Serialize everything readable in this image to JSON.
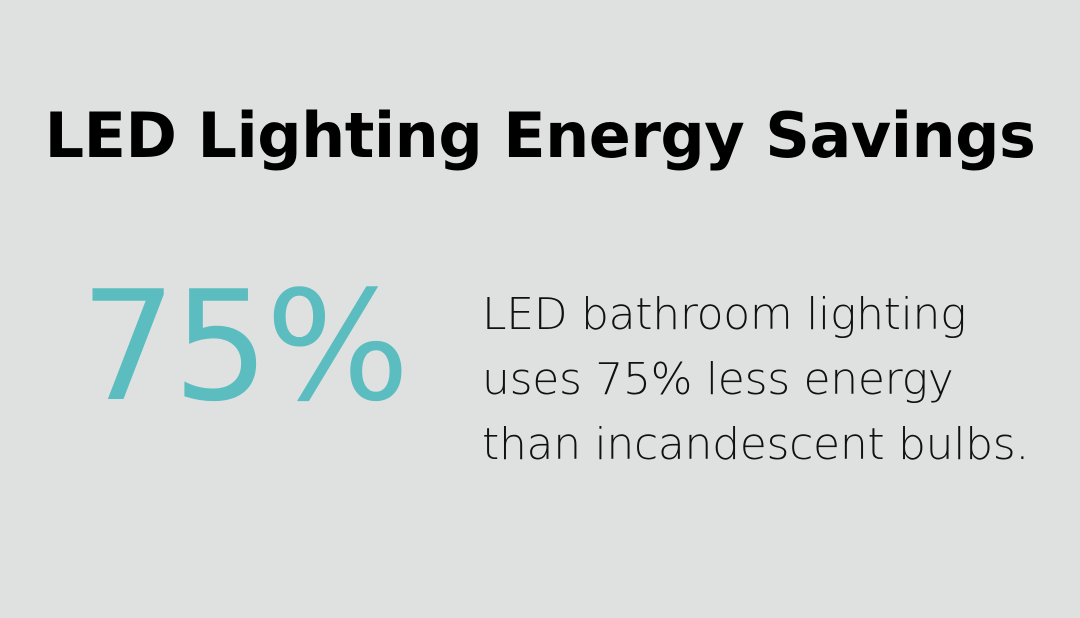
{
  "title": "LED Lighting Energy Savings",
  "stat": {
    "value": "75%",
    "color": "#5bbdc0"
  },
  "description": "LED bathroom lighting uses 75% less energy than incandescent bulbs.",
  "colors": {
    "background": "#dfe1e0",
    "text": "#000000",
    "accent": "#5bbdc0"
  }
}
